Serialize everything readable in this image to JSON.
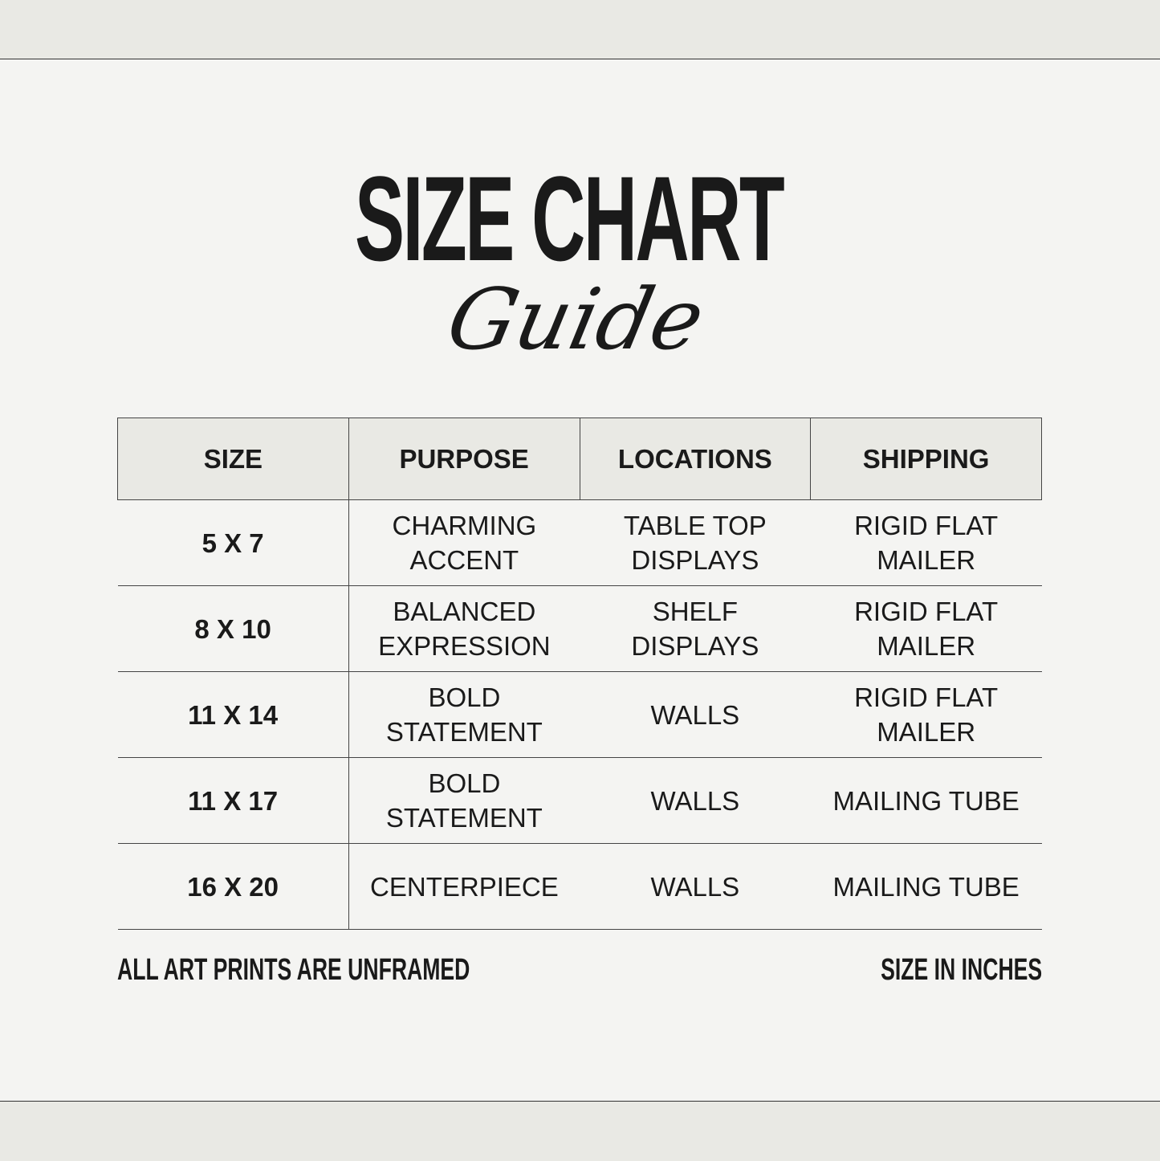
{
  "title": {
    "main": "SIZE CHART",
    "script": "Guide"
  },
  "table": {
    "headers": [
      "SIZE",
      "PURPOSE",
      "LOCATIONS",
      "SHIPPING"
    ],
    "rows": [
      {
        "size": "5 X 7",
        "purpose": [
          "CHARMING",
          "ACCENT"
        ],
        "locations": [
          "TABLE TOP",
          "DISPLAYS"
        ],
        "shipping": [
          "RIGID FLAT",
          "MAILER"
        ]
      },
      {
        "size": "8 X 10",
        "purpose": [
          "BALANCED",
          "EXPRESSION"
        ],
        "locations": [
          "SHELF",
          "DISPLAYS"
        ],
        "shipping": [
          "RIGID FLAT",
          "MAILER"
        ]
      },
      {
        "size": "11 X 14",
        "purpose": [
          "BOLD",
          "STATEMENT"
        ],
        "locations": [
          "WALLS"
        ],
        "shipping": [
          "RIGID FLAT",
          "MAILER"
        ]
      },
      {
        "size": "11 X 17",
        "purpose": [
          "BOLD",
          "STATEMENT"
        ],
        "locations": [
          "WALLS"
        ],
        "shipping": [
          "MAILING TUBE"
        ]
      },
      {
        "size": "16 X 20",
        "purpose": [
          "CENTERPIECE"
        ],
        "locations": [
          "WALLS"
        ],
        "shipping": [
          "MAILING TUBE"
        ]
      }
    ]
  },
  "footer": {
    "left": "ALL ART PRINTS ARE UNFRAMED",
    "right": "SIZE IN INCHES"
  },
  "colors": {
    "background": "#f4f4f2",
    "band": "#e9e9e4",
    "text": "#1a1a1a"
  }
}
